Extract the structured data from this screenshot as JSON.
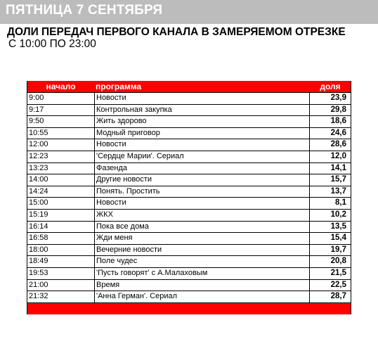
{
  "banner": {
    "title": "ПЯТНИЦА 7 СЕНТЯБРЯ"
  },
  "headline": {
    "line1": "ДОЛИ ПЕРЕДАЧ ПЕРВОГО КАНАЛА В ЗАМЕРЯЕМОМ ОТРЕЗКЕ",
    "line2": "С 10:00 ПО 23:00"
  },
  "table": {
    "columns": [
      "начало",
      "программа",
      "доля"
    ],
    "rows": [
      {
        "start": "9:00",
        "program": "Новости",
        "share": "23,9"
      },
      {
        "start": "9:17",
        "program": "Контрольная закупка",
        "share": "29,8"
      },
      {
        "start": "9:50",
        "program": "Жить здорово",
        "share": "18,6"
      },
      {
        "start": "10:55",
        "program": "Модный приговор",
        "share": "24,6"
      },
      {
        "start": "12:00",
        "program": "Новости",
        "share": "28,6"
      },
      {
        "start": "12:23",
        "program": "'Сердце Марии'. Сериал",
        "share": "12,0"
      },
      {
        "start": "13:23",
        "program": "Фазенда",
        "share": "14,1"
      },
      {
        "start": "14:00",
        "program": "Другие новости",
        "share": "15,7"
      },
      {
        "start": "14:24",
        "program": "Понять. Простить",
        "share": "13,7"
      },
      {
        "start": "15:00",
        "program": "Новости",
        "share": "8,1"
      },
      {
        "start": "15:19",
        "program": "ЖКХ",
        "share": "10,2"
      },
      {
        "start": "16:14",
        "program": "Пока все дома",
        "share": "13,5"
      },
      {
        "start": "16:58",
        "program": "Жди меня",
        "share": "15,4"
      },
      {
        "start": "18:00",
        "program": "Вечерние новости",
        "share": "19,7"
      },
      {
        "start": "18:49",
        "program": "Поле чудес",
        "share": "20,8"
      },
      {
        "start": "19:53",
        "program": "'Пусть говорят' с А.Малаховым",
        "share": "21,5"
      },
      {
        "start": "21:00",
        "program": "Время",
        "share": "22,5"
      },
      {
        "start": "21:32",
        "program": "'Анна Герман'. Сериал",
        "share": "28,7"
      }
    ]
  },
  "colors": {
    "banner": "#bcbcbc",
    "table_header": "#ff0000"
  }
}
